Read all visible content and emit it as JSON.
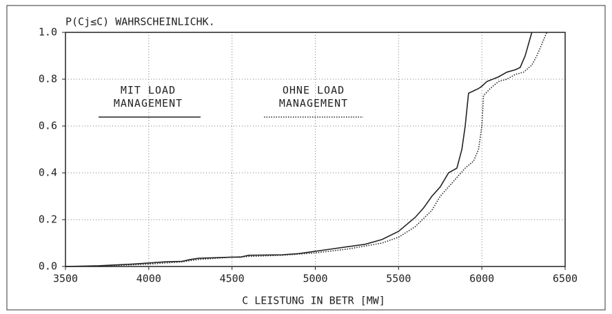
{
  "chart_data": {
    "type": "line",
    "title": "P(Cj≤C) WAHRSCHEINLICHK.",
    "x_label": "C LEISTUNG IN BETR [MW]",
    "xlim": [
      3500,
      6500
    ],
    "xticks": [
      3500,
      4000,
      4500,
      5000,
      5500,
      6000,
      6500
    ],
    "ylim": [
      0,
      1.0
    ],
    "yticks": [
      {
        "value": 0,
        "label": "0.0"
      },
      0.2,
      0.4,
      0.6,
      0.8,
      {
        "value": 1.0,
        "label": "1.0"
      }
    ],
    "grid": true,
    "series": [
      {
        "name": "MIT LOAD MANAGEMENT",
        "color": "#222222",
        "dash": "solid",
        "x": [
          3500,
          3700,
          3900,
          4000,
          4100,
          4200,
          4250,
          4300,
          4500,
          4550,
          4600,
          4800,
          4900,
          5000,
          5100,
          5200,
          5300,
          5400,
          5500,
          5600,
          5650,
          5700,
          5750,
          5800,
          5850,
          5880,
          5900,
          5920,
          5950,
          5980,
          6000,
          6030,
          6100,
          6150,
          6200,
          6230,
          6260,
          6280,
          6300
        ],
        "values": [
          0,
          0.003,
          0.01,
          0.015,
          0.02,
          0.022,
          0.03,
          0.035,
          0.04,
          0.04,
          0.048,
          0.05,
          0.055,
          0.065,
          0.075,
          0.085,
          0.095,
          0.115,
          0.15,
          0.21,
          0.25,
          0.3,
          0.34,
          0.4,
          0.42,
          0.5,
          0.6,
          0.74,
          0.75,
          0.76,
          0.77,
          0.79,
          0.81,
          0.83,
          0.84,
          0.85,
          0.9,
          0.95,
          1.0
        ]
      },
      {
        "name": "OHNE LOAD MANAGEMENT",
        "color": "#222222",
        "dash": "dotted",
        "x": [
          3500,
          3700,
          4000,
          4200,
          4300,
          4500,
          4800,
          5000,
          5200,
          5400,
          5500,
          5600,
          5700,
          5750,
          5800,
          5850,
          5900,
          5950,
          5980,
          6000,
          6010,
          6050,
          6100,
          6150,
          6200,
          6250,
          6300,
          6330,
          6360,
          6390
        ],
        "values": [
          0,
          0.002,
          0.01,
          0.02,
          0.03,
          0.04,
          0.048,
          0.058,
          0.075,
          0.1,
          0.125,
          0.17,
          0.24,
          0.3,
          0.34,
          0.38,
          0.42,
          0.45,
          0.5,
          0.6,
          0.73,
          0.76,
          0.79,
          0.8,
          0.82,
          0.83,
          0.86,
          0.9,
          0.95,
          1.0
        ]
      }
    ]
  }
}
